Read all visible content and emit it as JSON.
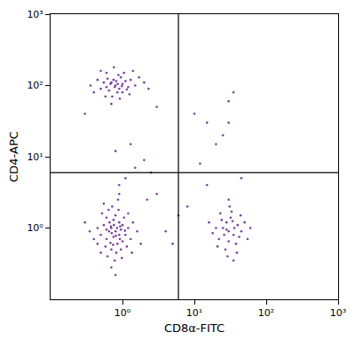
{
  "chart_data": {
    "type": "scatter",
    "x_label": "CD8α-FITC",
    "y_label": "CD4-APC",
    "log": true,
    "grid": false,
    "color": "#6b2a8f",
    "marker": "dot",
    "xlim": [
      0.1,
      1000
    ],
    "ylim": [
      0.1,
      1000
    ],
    "xticks": [
      {
        "value": 1,
        "label": "10⁰"
      },
      {
        "value": 10,
        "label": "10¹"
      },
      {
        "value": 100,
        "label": "10²"
      },
      {
        "value": 1000,
        "label": "10³"
      }
    ],
    "yticks": [
      {
        "value": 1,
        "label": "10⁰"
      },
      {
        "value": 10,
        "label": "10¹"
      },
      {
        "value": 100,
        "label": "10²"
      },
      {
        "value": 1000,
        "label": "10³"
      }
    ],
    "vlines": [
      6
    ],
    "hlines": [
      6
    ],
    "x": [
      0.8,
      0.7,
      0.9,
      0.6,
      1.0,
      0.75,
      0.85,
      0.65,
      0.55,
      0.95,
      1.1,
      0.7,
      0.8,
      0.6,
      0.5,
      1.2,
      0.9,
      0.75,
      0.68,
      0.82,
      1.3,
      0.45,
      0.58,
      1.05,
      0.88,
      0.72,
      0.62,
      0.95,
      1.4,
      0.4,
      0.78,
      1.15,
      0.52,
      0.66,
      0.92,
      0.84,
      0.71,
      0.6,
      1.0,
      0.76,
      0.35,
      1.6,
      0.87,
      0.7,
      0.5,
      1.2,
      0.98,
      0.64,
      0.3,
      1.8,
      0.8,
      0.9,
      0.55,
      1.35,
      0.45,
      0.74,
      0.81,
      0.69,
      0.93,
      1.08,
      0.9,
      1.1,
      1.5,
      2,
      0.8,
      1.3,
      2.5,
      3,
      2.2,
      0.8,
      0.7,
      0.9,
      1.0,
      0.6,
      0.75,
      0.85,
      1.1,
      0.65,
      0.95,
      0.55,
      1.2,
      0.72,
      0.88,
      1.3,
      0.5,
      0.78,
      0.68,
      1.0,
      0.82,
      1.5,
      0.45,
      0.6,
      1.05,
      0.92,
      0.4,
      1.7,
      0.58,
      1.25,
      0.76,
      2.0,
      0.36,
      1.4,
      0.86,
      0.98,
      0.62,
      1.15,
      0.7,
      2.3,
      0.5,
      30,
      25,
      35,
      28,
      40,
      22,
      32,
      38,
      27,
      45,
      20,
      33,
      30,
      50,
      24,
      36,
      29,
      42,
      18,
      31,
      26,
      55,
      34,
      23,
      39,
      28,
      60,
      16,
      44,
      30,
      35,
      21,
      10,
      15,
      20,
      30,
      35,
      12,
      8,
      5,
      6,
      4,
      30,
      25,
      45,
      15,
      0.3,
      3
    ],
    "y": [
      0.9,
      1.0,
      0.8,
      0.7,
      1.1,
      1.3,
      0.6,
      0.9,
      1.1,
      0.95,
      0.8,
      0.5,
      1.5,
      1.4,
      0.8,
      1.0,
      1.2,
      0.75,
      0.62,
      0.45,
      0.7,
      1.0,
      0.55,
      1.4,
      1.8,
      2.0,
      0.4,
      0.5,
      1.2,
      0.7,
      0.35,
      0.55,
      1.6,
      1.2,
      0.7,
      1.0,
      0.85,
      0.95,
      0.65,
      1.1,
      0.9,
      0.9,
      2.5,
      0.28,
      0.45,
      1.6,
      0.38,
      1.8,
      1.2,
      0.6,
      0.22,
      3.0,
      2.2,
      0.45,
      0.6,
      0.58,
      0.78,
      1.05,
      1.05,
      0.92,
      4,
      5,
      7,
      9,
      12,
      15,
      6,
      3,
      2.5,
      100,
      110,
      90,
      105,
      95,
      120,
      80,
      115,
      85,
      130,
      110,
      95,
      70,
      140,
      120,
      90,
      95,
      105,
      80,
      115,
      100,
      120,
      150,
      150,
      65,
      80,
      130,
      70,
      75,
      180,
      110,
      100,
      160,
      105,
      98,
      125,
      88,
      55,
      90,
      160,
      0.9,
      1.0,
      0.8,
      1.2,
      1.1,
      0.7,
      1.4,
      0.6,
      0.5,
      0.9,
      1.0,
      1.7,
      0.65,
      1.2,
      1.3,
      1.0,
      0.4,
      0.75,
      0.85,
      2.0,
      0.8,
      0.7,
      1.25,
      1.6,
      0.45,
      0.95,
      1.0,
      1.2,
      1.5,
      2.5,
      0.35,
      0.55,
      40,
      30,
      15,
      60,
      80,
      8,
      2,
      0.6,
      1.5,
      0.9,
      30,
      20,
      5,
      4,
      40,
      50
    ]
  }
}
